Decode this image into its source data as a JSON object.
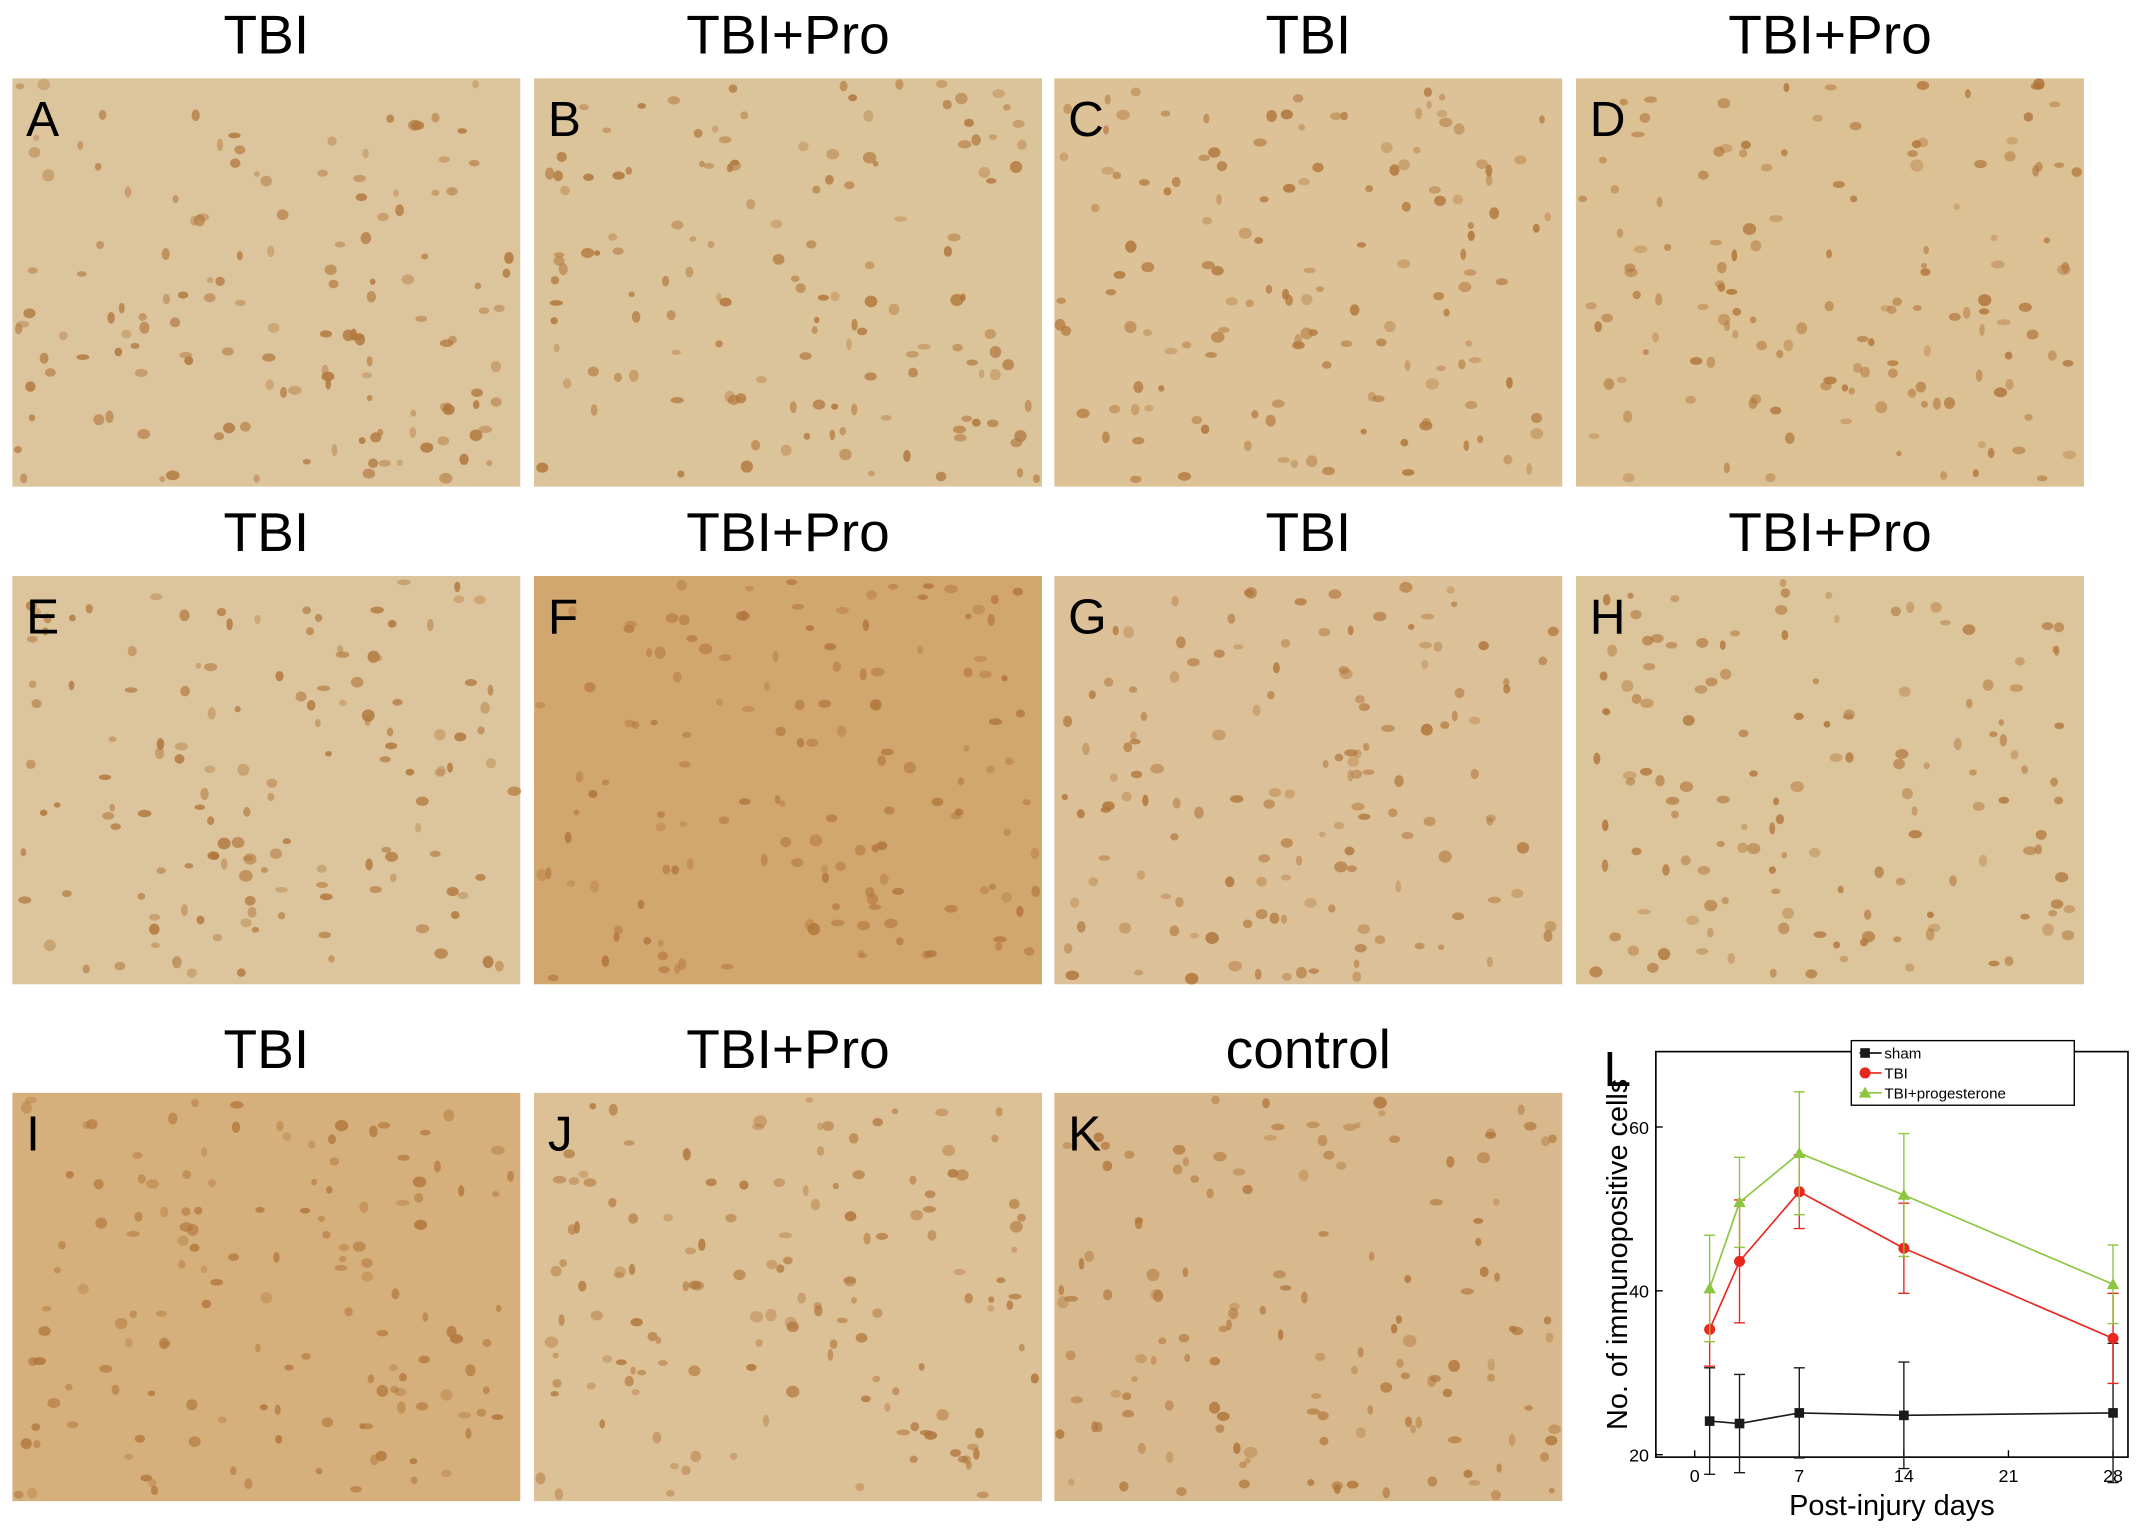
{
  "panels": [
    {
      "title": "TBI",
      "letter": "A"
    },
    {
      "title": "TBI+Pro",
      "letter": "B"
    },
    {
      "title": "TBI",
      "letter": "C"
    },
    {
      "title": "TBI+Pro",
      "letter": "D"
    },
    {
      "title": "TBI",
      "letter": "E"
    },
    {
      "title": "TBI+Pro",
      "letter": "F"
    },
    {
      "title": "TBI",
      "letter": "G"
    },
    {
      "title": "TBI+Pro",
      "letter": "H"
    },
    {
      "title": "TBI",
      "letter": "I"
    },
    {
      "title": "TBI+Pro",
      "letter": "J"
    },
    {
      "title": "control",
      "letter": "K"
    }
  ],
  "chart_data": {
    "type": "line",
    "letter": "L",
    "xlabel": "Post-injury days",
    "ylabel": "No. of immunopositive cells",
    "x": [
      1,
      3,
      7,
      14,
      28
    ],
    "series": [
      {
        "name": "sham",
        "color": "#1a1a1a",
        "marker": "square",
        "values": [
          24.1,
          23.8,
          25.1,
          24.8,
          25.1
        ],
        "errors": [
          6.5,
          6,
          5.5,
          6.5,
          8.5
        ]
      },
      {
        "name": "TBI",
        "color": "#e8271f",
        "marker": "circle",
        "values": [
          35.3,
          43.6,
          52.1,
          45.2,
          34.2
        ],
        "errors": [
          4.5,
          7.5,
          4.5,
          5.5,
          5.5
        ]
      },
      {
        "name": "TBI+progesterone",
        "color": "#8cc63f",
        "marker": "triangle",
        "values": [
          40.3,
          50.8,
          56.8,
          51.7,
          40.8
        ],
        "errors": [
          6.5,
          5.5,
          7.5,
          7.5,
          4.8
        ]
      }
    ],
    "xlim": [
      -2.6,
      29
    ],
    "ylim": [
      19.7,
      69.2
    ],
    "xticks": [
      0,
      7,
      14,
      21,
      28
    ],
    "yticks": [
      20,
      40,
      60
    ],
    "legend": "upper right"
  }
}
